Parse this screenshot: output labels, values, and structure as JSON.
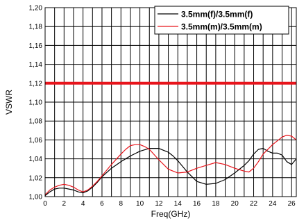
{
  "chart_data": {
    "type": "line",
    "title": "",
    "xlabel": "Freq(GHz)",
    "ylabel": "VSWR",
    "xlim": [
      0,
      26.5
    ],
    "ylim": [
      1.0,
      1.2
    ],
    "xticks": [
      0,
      2,
      4,
      6,
      8,
      10,
      12,
      14,
      16,
      18,
      20,
      22,
      24,
      26
    ],
    "yticks": [
      1.0,
      1.02,
      1.04,
      1.06,
      1.08,
      1.1,
      1.12,
      1.14,
      1.16,
      1.18,
      1.2
    ],
    "ytick_labels": [
      "1,00",
      "1,02",
      "1,04",
      "1,06",
      "1,08",
      "1,10",
      "1,12",
      "1,14",
      "1,16",
      "1,18",
      "1,20"
    ],
    "grid": true,
    "legend_position": "top-right",
    "limit_line": {
      "y": 1.12,
      "color": "#e8141b"
    },
    "series": [
      {
        "name": "3.5mm(f)/3.5mm(f)",
        "color": "#000000",
        "x": [
          0,
          0.5,
          1,
          1.5,
          2,
          2.5,
          3,
          3.5,
          4,
          4.5,
          5,
          5.5,
          6,
          7,
          8,
          9,
          10,
          11,
          12,
          12.5,
          13,
          13.5,
          14,
          14.5,
          15,
          16,
          17,
          18,
          19,
          20,
          21,
          21.5,
          22,
          22.5,
          23,
          23.5,
          24,
          24.5,
          25,
          25.5,
          26,
          26.5
        ],
        "y": [
          1.001,
          1.005,
          1.008,
          1.009,
          1.009,
          1.008,
          1.007,
          1.005,
          1.004,
          1.006,
          1.01,
          1.015,
          1.021,
          1.03,
          1.037,
          1.043,
          1.048,
          1.051,
          1.051,
          1.049,
          1.047,
          1.043,
          1.038,
          1.032,
          1.026,
          1.016,
          1.013,
          1.014,
          1.018,
          1.025,
          1.033,
          1.038,
          1.045,
          1.05,
          1.051,
          1.048,
          1.046,
          1.046,
          1.044,
          1.037,
          1.034,
          1.04
        ]
      },
      {
        "name": "3.5mm(m)/3.5mm(m)",
        "color": "#e8141b",
        "x": [
          0,
          0.5,
          1,
          1.5,
          2,
          2.5,
          3,
          3.5,
          4,
          4.5,
          5,
          5.5,
          6,
          7,
          8,
          8.5,
          9,
          9.5,
          10,
          10.5,
          11,
          12,
          13,
          14,
          15,
          16,
          17,
          18,
          19,
          20,
          21,
          21.5,
          22,
          22.5,
          23,
          24,
          25,
          25.5,
          26,
          26.5
        ],
        "y": [
          1.002,
          1.007,
          1.01,
          1.012,
          1.013,
          1.012,
          1.01,
          1.007,
          1.005,
          1.007,
          1.011,
          1.016,
          1.022,
          1.034,
          1.045,
          1.05,
          1.054,
          1.055,
          1.055,
          1.053,
          1.05,
          1.039,
          1.029,
          1.025,
          1.026,
          1.03,
          1.033,
          1.036,
          1.034,
          1.03,
          1.027,
          1.026,
          1.03,
          1.037,
          1.045,
          1.055,
          1.063,
          1.065,
          1.064,
          1.06
        ]
      }
    ]
  }
}
